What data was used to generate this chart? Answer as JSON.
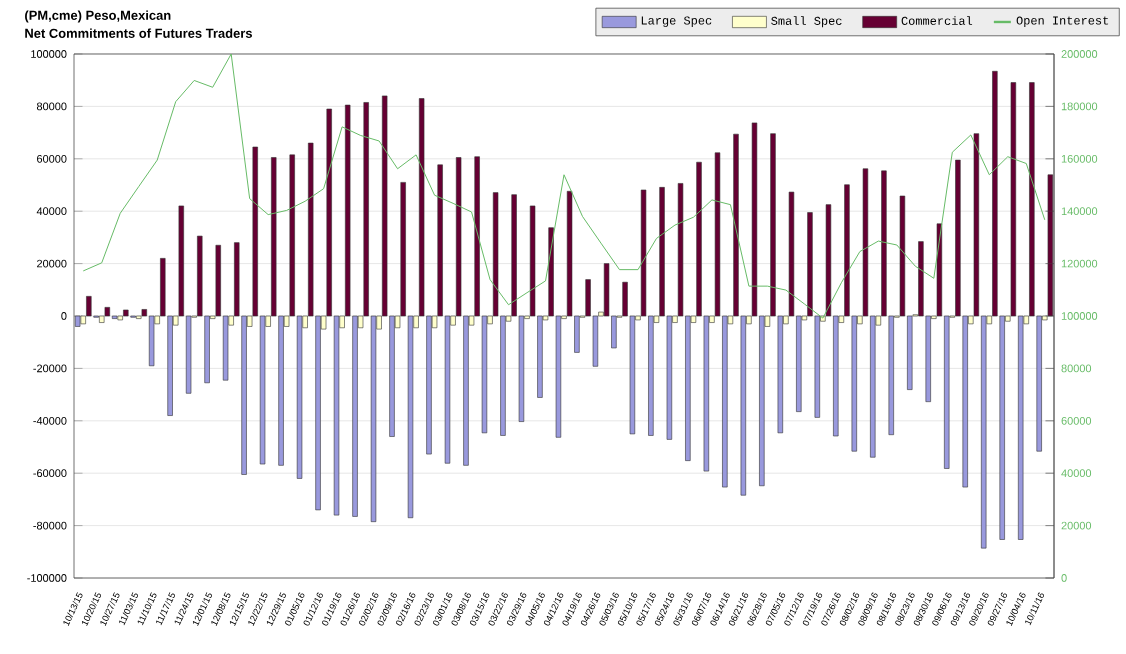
{
  "chart_data": {
    "type": "bar",
    "title": "(PM,cme) Peso,Mexican",
    "subtitle": "Net Commitments of Futures Traders",
    "categories": [
      "10/13/15",
      "10/20/15",
      "10/27/15",
      "11/03/15",
      "11/10/15",
      "11/17/15",
      "11/24/15",
      "12/01/15",
      "12/08/15",
      "12/15/15",
      "12/22/15",
      "12/29/15",
      "01/05/16",
      "01/12/16",
      "01/19/16",
      "01/26/16",
      "02/02/16",
      "02/09/16",
      "02/16/16",
      "02/23/16",
      "03/01/16",
      "03/08/16",
      "03/15/16",
      "03/22/16",
      "03/29/16",
      "04/05/16",
      "04/12/16",
      "04/19/16",
      "04/26/16",
      "05/03/16",
      "05/10/16",
      "05/17/16",
      "05/24/16",
      "05/31/16",
      "06/07/16",
      "06/14/16",
      "06/21/16",
      "06/28/16",
      "07/05/16",
      "07/12/16",
      "07/19/16",
      "07/26/16",
      "08/02/16",
      "08/09/16",
      "08/16/16",
      "08/23/16",
      "08/30/16",
      "09/06/16",
      "09/13/16",
      "09/20/16",
      "09/27/16",
      "10/04/16",
      "10/11/16"
    ],
    "series": [
      {
        "name": "Large Spec",
        "color": "#9999dd",
        "values": [
          -4000,
          -500,
          -1000,
          -500,
          -19000,
          -38000,
          -29500,
          -25500,
          -24500,
          -60500,
          -56500,
          -57000,
          -62000,
          -74000,
          -76000,
          -76500,
          -78500,
          -46000,
          -77000,
          -52700,
          -56200,
          -57000,
          -44600,
          -45600,
          -40300,
          -31100,
          -46300,
          -13900,
          -19200,
          -12200,
          -45000,
          -45600,
          -47100,
          -55200,
          -59200,
          -65300,
          -68400,
          -64800,
          -44600,
          -36500,
          -38700,
          -45800,
          -51600,
          -53900,
          -45300,
          -28100,
          -32700,
          -58200,
          -65300,
          -88600,
          -85300,
          -85300,
          -51600
        ]
      },
      {
        "name": "Small Spec",
        "color": "#ffffcc",
        "values": [
          -3000,
          -2500,
          -1500,
          -1000,
          -3000,
          -3500,
          -500,
          -1000,
          -3500,
          -4000,
          -4000,
          -4000,
          -4500,
          -5000,
          -4500,
          -4500,
          -5000,
          -4500,
          -4500,
          -4500,
          -3500,
          -3500,
          -3000,
          -2000,
          -1000,
          -1500,
          -1000,
          -500,
          1500,
          -500,
          -1500,
          -2500,
          -2500,
          -2500,
          -2500,
          -3000,
          -3000,
          -4000,
          -3000,
          -1500,
          -2000,
          -2500,
          -3000,
          -3500,
          -500,
          500,
          -1000,
          -500,
          -3000,
          -3000,
          -2000,
          -3000,
          -1500
        ]
      },
      {
        "name": "Commercial",
        "color": "#660033",
        "values": [
          7500,
          3300,
          2300,
          2500,
          22000,
          42000,
          30500,
          27000,
          28000,
          64500,
          60500,
          61500,
          66000,
          79000,
          80500,
          81500,
          84000,
          51000,
          83000,
          57700,
          60500,
          60800,
          47100,
          46300,
          42000,
          33700,
          47600,
          13900,
          20000,
          12900,
          48100,
          49100,
          50600,
          58700,
          62300,
          69400,
          73700,
          69600,
          47300,
          39500,
          42500,
          50100,
          56200,
          55400,
          45800,
          28400,
          35200,
          59500,
          69600,
          93400,
          89100,
          89100,
          53900
        ]
      },
      {
        "name": "Open Interest",
        "type": "line",
        "axis": "y2",
        "color": "#66bb66",
        "values": [
          117200,
          120300,
          139200,
          149400,
          159500,
          181800,
          189900,
          187300,
          200000,
          144800,
          138700,
          140300,
          143800,
          148600,
          172200,
          168900,
          166800,
          156200,
          161500,
          146100,
          143000,
          139700,
          113900,
          104300,
          108900,
          113400,
          153900,
          138000,
          127800,
          117700,
          117700,
          129600,
          134700,
          137700,
          144300,
          142500,
          111400,
          111400,
          109900,
          104600,
          99200,
          112700,
          124600,
          128600,
          127100,
          119000,
          114400,
          162500,
          169100,
          153900,
          160800,
          158200,
          136700
        ]
      }
    ],
    "ylim": [
      -100000,
      100000
    ],
    "yticks": [
      -100000,
      -80000,
      -60000,
      -40000,
      -20000,
      0,
      20000,
      40000,
      60000,
      80000,
      100000
    ],
    "y2lim": [
      0,
      200000
    ],
    "y2ticks": [
      0,
      20000,
      40000,
      60000,
      80000,
      100000,
      120000,
      140000,
      160000,
      180000,
      200000
    ],
    "grid": "y",
    "legend": "top right"
  }
}
